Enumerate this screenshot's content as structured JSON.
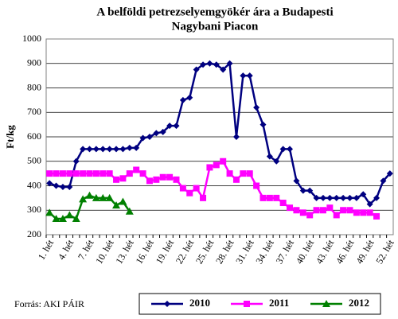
{
  "chart_data": {
    "type": "line",
    "title": [
      "A belföldi petrezselyemgyökér ára a Budapesti",
      "Nagybani Piacon"
    ],
    "y_label": "Ft/kg",
    "source": "Forrás: AKI PÁIR",
    "categories": [
      "1. hét",
      null,
      null,
      "4. hét",
      null,
      null,
      "7. hét",
      null,
      null,
      "10. hét",
      null,
      null,
      "13. hét",
      null,
      null,
      "16. hét",
      null,
      null,
      "19. hét",
      null,
      null,
      "22. hét",
      null,
      null,
      "25. hét",
      null,
      null,
      "28. hét",
      null,
      null,
      "31. hét",
      null,
      null,
      "34. hét",
      null,
      null,
      "37. hét",
      null,
      null,
      "40. hét",
      null,
      null,
      "43. hét",
      null,
      null,
      "46. hét",
      null,
      null,
      "49. hét",
      null,
      null,
      "52. hét"
    ],
    "ylim": [
      200,
      1000
    ],
    "yticks": [
      200,
      300,
      400,
      500,
      600,
      700,
      800,
      900,
      1000
    ],
    "grid": true,
    "series": [
      {
        "name": "2010",
        "color": "#000080",
        "marker": "diamond",
        "values": [
          410,
          400,
          395,
          395,
          500,
          550,
          550,
          550,
          550,
          550,
          550,
          550,
          555,
          555,
          595,
          600,
          615,
          620,
          645,
          645,
          750,
          760,
          875,
          895,
          900,
          895,
          875,
          900,
          600,
          850,
          850,
          720,
          650,
          520,
          500,
          550,
          550,
          420,
          380,
          380,
          350,
          350,
          350,
          350,
          350,
          350,
          350,
          365,
          325,
          350,
          420,
          450
        ]
      },
      {
        "name": "2011",
        "color": "#ff00ff",
        "marker": "square",
        "values": [
          450,
          450,
          450,
          450,
          450,
          450,
          450,
          450,
          450,
          450,
          425,
          430,
          450,
          465,
          450,
          420,
          425,
          435,
          435,
          425,
          390,
          370,
          390,
          350,
          475,
          485,
          500,
          450,
          425,
          450,
          450,
          400,
          350,
          350,
          350,
          330,
          310,
          300,
          290,
          280,
          300,
          300,
          310,
          280,
          300,
          300,
          290,
          290,
          290,
          275,
          null,
          null
        ]
      },
      {
        "name": "2012",
        "color": "#008000",
        "marker": "triangle",
        "values": [
          290,
          265,
          265,
          280,
          265,
          345,
          360,
          350,
          350,
          350,
          320,
          335,
          295,
          null,
          null,
          null,
          null,
          null,
          null,
          null,
          null,
          null,
          null,
          null,
          null,
          null,
          null,
          null,
          null,
          null,
          null,
          null,
          null,
          null,
          null,
          null,
          null,
          null,
          null,
          null,
          null,
          null,
          null,
          null,
          null,
          null,
          null,
          null,
          null,
          null,
          null,
          null
        ]
      }
    ]
  }
}
